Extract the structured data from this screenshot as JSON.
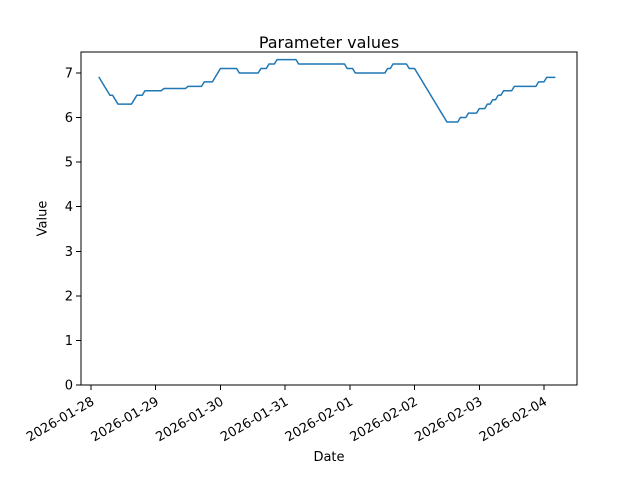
{
  "figure": {
    "title": "Parameter values",
    "xlabel": "Date",
    "ylabel": "Value"
  },
  "chart_data": {
    "type": "line",
    "title": "Parameter values",
    "xlabel": "Date",
    "ylabel": "Value",
    "grid": false,
    "legend": "none",
    "line_color": "#1f77b4",
    "line_width": 1.5,
    "x_tick_labels": [
      "2026-01-28",
      "2026-01-29",
      "2026-01-30",
      "2026-01-31",
      "2026-02-01",
      "2026-02-02",
      "2026-02-03",
      "2026-02-04"
    ],
    "y_ticks": [
      0,
      1,
      2,
      3,
      4,
      5,
      6,
      7
    ],
    "ylim": [
      0,
      7.47
    ],
    "xlim_days": [
      -0.155,
      7.51
    ],
    "x_start": "2026-01-28 03:00",
    "x_step_hours": 1,
    "values": [
      6.9,
      6.8,
      6.7,
      6.6,
      6.5,
      6.5,
      6.4,
      6.3,
      6.3,
      6.3,
      6.3,
      6.3,
      6.3,
      6.4,
      6.5,
      6.5,
      6.5,
      6.6,
      6.6,
      6.6,
      6.6,
      6.6,
      6.6,
      6.6,
      6.65,
      6.65,
      6.65,
      6.65,
      6.65,
      6.65,
      6.65,
      6.65,
      6.65,
      6.7,
      6.7,
      6.7,
      6.7,
      6.7,
      6.7,
      6.8,
      6.8,
      6.8,
      6.8,
      6.9,
      7.0,
      7.1,
      7.1,
      7.1,
      7.1,
      7.1,
      7.1,
      7.1,
      7.0,
      7.0,
      7.0,
      7.0,
      7.0,
      7.0,
      7.0,
      7.0,
      7.1,
      7.1,
      7.1,
      7.2,
      7.2,
      7.2,
      7.3,
      7.3,
      7.3,
      7.3,
      7.3,
      7.3,
      7.3,
      7.3,
      7.2,
      7.2,
      7.2,
      7.2,
      7.2,
      7.2,
      7.2,
      7.2,
      7.2,
      7.2,
      7.2,
      7.2,
      7.2,
      7.2,
      7.2,
      7.2,
      7.2,
      7.2,
      7.1,
      7.1,
      7.1,
      7.0,
      7.0,
      7.0,
      7.0,
      7.0,
      7.0,
      7.0,
      7.0,
      7.0,
      7.0,
      7.0,
      7.0,
      7.1,
      7.1,
      7.2,
      7.2,
      7.2,
      7.2,
      7.2,
      7.2,
      7.1,
      7.1,
      7.1,
      7.0,
      6.9,
      6.8,
      6.7,
      6.6,
      6.5,
      6.4,
      6.3,
      6.2,
      6.1,
      6.0,
      5.9,
      5.9,
      5.9,
      5.9,
      5.9,
      6.0,
      6.0,
      6.0,
      6.1,
      6.1,
      6.1,
      6.1,
      6.2,
      6.2,
      6.2,
      6.3,
      6.3,
      6.4,
      6.4,
      6.5,
      6.5,
      6.6,
      6.6,
      6.6,
      6.6,
      6.7,
      6.7,
      6.7,
      6.7,
      6.7,
      6.7,
      6.7,
      6.7,
      6.7,
      6.8,
      6.8,
      6.8,
      6.9,
      6.9,
      6.9,
      6.9
    ]
  }
}
